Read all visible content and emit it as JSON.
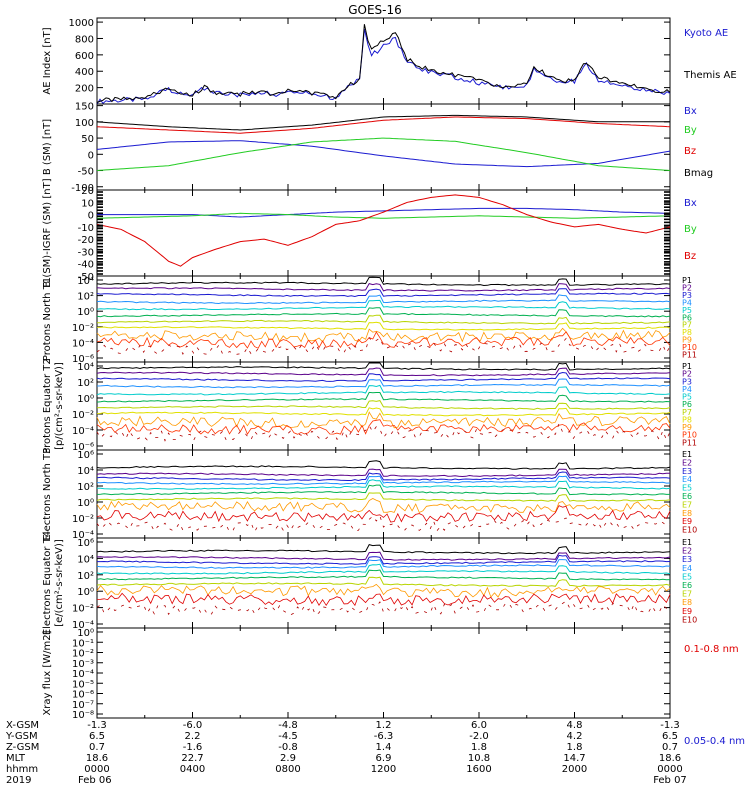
{
  "title": "GOES-16",
  "colors": {
    "black": "#000000",
    "blue": "#1a1ad0",
    "green": "#22cc22",
    "red": "#e00000",
    "P1": "#000000",
    "P2": "#5a008a",
    "P3": "#1a1ad0",
    "P4": "#1e90ff",
    "P5": "#00cccc",
    "P6": "#00b050",
    "P7": "#b8d400",
    "P8": "#e0e000",
    "P9": "#ff9900",
    "P10": "#ff3300",
    "P11": "#b00000",
    "E1": "#000000",
    "E2": "#5a008a",
    "E3": "#1a1ad0",
    "E4": "#1e90ff",
    "E5": "#00cccc",
    "E6": "#00b050",
    "E7": "#b8d400",
    "E8": "#ff9900",
    "E9": "#e00000",
    "E10": "#b00000"
  },
  "chart_data": [
    {
      "type": "line",
      "id": "ae",
      "ylabel": "AE Index [nT]",
      "yticks": [
        "200",
        "400",
        "600",
        "800",
        "1000"
      ],
      "ylim": [
        0,
        1050
      ],
      "series": [
        {
          "name": "Kyoto AE",
          "color": "blue",
          "x_hours": [
            0,
            2,
            3,
            4,
            4.5,
            5,
            6,
            7,
            7.5,
            8,
            9,
            10,
            10.5,
            11,
            11.2,
            11.5,
            12,
            12.5,
            13,
            14,
            15,
            16,
            17,
            18,
            18.3,
            19,
            19.5,
            20,
            20.5,
            21,
            22,
            23,
            24
          ],
          "values": [
            30,
            60,
            180,
            100,
            200,
            130,
            110,
            150,
            90,
            170,
            120,
            70,
            200,
            300,
            900,
            600,
            700,
            800,
            500,
            380,
            330,
            260,
            200,
            220,
            420,
            320,
            260,
            280,
            500,
            300,
            220,
            170,
            130
          ]
        },
        {
          "name": "Themis AE",
          "color": "black",
          "x_hours": [
            0,
            2,
            3,
            4,
            4.5,
            5,
            6,
            7,
            7.5,
            8,
            9,
            10,
            10.5,
            11,
            11.2,
            11.5,
            12,
            12.5,
            13,
            14,
            15,
            16,
            17,
            18,
            18.3,
            19,
            19.5,
            20,
            20.5,
            21,
            22,
            23,
            24
          ],
          "values": [
            40,
            70,
            190,
            110,
            210,
            140,
            120,
            160,
            100,
            180,
            130,
            80,
            210,
            320,
            950,
            650,
            780,
            860,
            540,
            400,
            350,
            280,
            210,
            230,
            440,
            340,
            280,
            300,
            520,
            320,
            240,
            180,
            140
          ]
        }
      ]
    },
    {
      "type": "line",
      "id": "bsm",
      "ylabel": "B (SM) [nT]",
      "yticks": [
        "-100",
        "-50",
        "0",
        "50",
        "100",
        "150"
      ],
      "ylim": [
        -110,
        155
      ],
      "series": [
        {
          "name": "Bx",
          "color": "blue",
          "x_hours": [
            0,
            3,
            6,
            9,
            12,
            15,
            18,
            21,
            24
          ],
          "values": [
            15,
            38,
            42,
            25,
            -5,
            -30,
            -38,
            -28,
            10
          ]
        },
        {
          "name": "By",
          "color": "green",
          "x_hours": [
            0,
            3,
            6,
            9,
            12,
            15,
            18,
            21,
            24
          ],
          "values": [
            -50,
            -35,
            5,
            38,
            50,
            40,
            5,
            -35,
            -50
          ]
        },
        {
          "name": "Bz",
          "color": "red",
          "x_hours": [
            0,
            3,
            6,
            9,
            12,
            15,
            18,
            21,
            24
          ],
          "values": [
            85,
            75,
            65,
            80,
            105,
            115,
            110,
            95,
            85
          ]
        },
        {
          "name": "Bmag",
          "color": "black",
          "x_hours": [
            0,
            3,
            6,
            9,
            12,
            15,
            18,
            21,
            24
          ],
          "values": [
            100,
            85,
            75,
            90,
            115,
            120,
            115,
            100,
            100
          ]
        }
      ]
    },
    {
      "type": "line",
      "id": "bigrf",
      "ylabel": "B (SM)-IGRF (SM) [nT]",
      "yticks": [
        "-50",
        "-40",
        "-30",
        "-20",
        "-10",
        "0",
        "10",
        "20"
      ],
      "ylim": [
        -50,
        20
      ],
      "series": [
        {
          "name": "Bx",
          "color": "blue",
          "x_hours": [
            0,
            2,
            4,
            6,
            8,
            10,
            12,
            14,
            16,
            18,
            20,
            22,
            24
          ],
          "values": [
            0,
            0,
            0,
            -2,
            0,
            2,
            3,
            4,
            5,
            5,
            4,
            2,
            1
          ]
        },
        {
          "name": "By",
          "color": "green",
          "x_hours": [
            0,
            2,
            4,
            6,
            8,
            10,
            12,
            14,
            16,
            18,
            20,
            22,
            24
          ],
          "values": [
            -3,
            -2,
            -1,
            1,
            0,
            -2,
            -3,
            -2,
            -1,
            -2,
            -3,
            -2,
            -1
          ]
        },
        {
          "name": "Bz",
          "color": "red",
          "x_hours": [
            0,
            1,
            2,
            3,
            3.5,
            4,
            5,
            6,
            7,
            8,
            9,
            10,
            11,
            12,
            13,
            14,
            15,
            16,
            17,
            18,
            19,
            20,
            21,
            22,
            23,
            24
          ],
          "values": [
            -8,
            -12,
            -22,
            -38,
            -42,
            -35,
            -28,
            -22,
            -20,
            -25,
            -18,
            -8,
            -5,
            2,
            10,
            14,
            16,
            14,
            8,
            0,
            -6,
            -10,
            -8,
            -12,
            -15,
            -10
          ]
        }
      ]
    },
    {
      "type": "line",
      "id": "prot-north",
      "ylabel": "Protons North T1",
      "yticks": [
        "10⁴",
        "10²",
        "10⁰",
        "10⁻²",
        "10⁻⁴",
        "10⁻⁶"
      ],
      "channels": [
        "P1",
        "P2",
        "P3",
        "P4",
        "P5",
        "P6",
        "P7",
        "P8",
        "P9",
        "P10",
        "P11"
      ],
      "levels_log10": [
        3.5,
        2.8,
        2.1,
        1.2,
        0.4,
        -0.5,
        -1.4,
        -2.2,
        -3.2,
        -4.0,
        -4.8
      ]
    },
    {
      "type": "line",
      "id": "prot-eq",
      "ylabel": "Protons Equator T2",
      "yunit": "[p/(cm²-s-sr-keV)]",
      "yticks": [
        "10⁴",
        "10²",
        "10⁰",
        "10⁻²",
        "10⁻⁴",
        "10⁻⁶"
      ],
      "channels": [
        "P1",
        "P2",
        "P3",
        "P4",
        "P5",
        "P6",
        "P7",
        "P8",
        "P9",
        "P10",
        "P11"
      ],
      "levels_log10": [
        3.7,
        3.0,
        2.3,
        1.5,
        0.6,
        -0.3,
        -1.2,
        -2.0,
        -3.0,
        -3.8,
        -4.6
      ]
    },
    {
      "type": "line",
      "id": "elec-north",
      "ylabel": "Electrons North T3",
      "yticks": [
        "10⁶",
        "10⁴",
        "10²",
        "10⁰",
        "10⁻²",
        "10⁻⁴"
      ],
      "channels": [
        "E1",
        "E2",
        "E3",
        "E4",
        "E5",
        "E6",
        "E7",
        "E8",
        "E9",
        "E10"
      ],
      "levels_log10": [
        4.3,
        3.4,
        2.9,
        2.4,
        1.8,
        1.1,
        0.3,
        -0.6,
        -1.8,
        -3.0
      ]
    },
    {
      "type": "line",
      "id": "elec-eq",
      "ylabel": "Electrons Equator T4",
      "yunit": "[e/(cm²-s-sr-keV)]",
      "yticks": [
        "10⁶",
        "10⁴",
        "10²",
        "10⁰",
        "10⁻²",
        "10⁻⁴"
      ],
      "channels": [
        "E1",
        "E2",
        "E3",
        "E4",
        "E5",
        "E6",
        "E7",
        "E8",
        "E9",
        "E10"
      ],
      "levels_log10": [
        4.8,
        4.0,
        3.5,
        3.0,
        2.3,
        1.6,
        0.8,
        0.0,
        -1.0,
        -2.2
      ]
    },
    {
      "type": "line",
      "id": "xray",
      "ylabel": "Xray flux [W/m2]",
      "yticks": [
        "10⁰",
        "10⁻¹",
        "10⁻²",
        "10⁻³",
        "10⁻⁴",
        "10⁻⁵",
        "10⁻⁶",
        "10⁻⁷",
        "10⁻⁸"
      ],
      "series": [
        {
          "name": "0.1-0.8 nm",
          "color": "red",
          "values": []
        },
        {
          "name": "0.05-0.4 nm",
          "color": "blue",
          "values": []
        }
      ]
    }
  ],
  "ephemeris": {
    "row_labels": [
      "X-GSM",
      "Y-GSM",
      "Z-GSM",
      "MLT",
      "hhmm",
      "2019"
    ],
    "columns": [
      {
        "values": [
          "-1.3",
          "6.5",
          "0.7",
          "18.6",
          "0000",
          "Feb 06"
        ]
      },
      {
        "values": [
          "-6.0",
          "2.2",
          "-1.6",
          "22.7",
          "0400",
          ""
        ]
      },
      {
        "values": [
          "-4.8",
          "-4.5",
          "-0.8",
          "2.9",
          "0800",
          ""
        ]
      },
      {
        "values": [
          "1.2",
          "-6.3",
          "1.4",
          "6.9",
          "1200",
          ""
        ]
      },
      {
        "values": [
          "6.0",
          "-2.0",
          "1.8",
          "10.8",
          "1600",
          ""
        ]
      },
      {
        "values": [
          "4.8",
          "4.2",
          "1.8",
          "14.7",
          "2000",
          ""
        ]
      },
      {
        "values": [
          "-1.3",
          "6.5",
          "0.7",
          "18.6",
          "0000",
          "Feb 07"
        ]
      }
    ]
  }
}
